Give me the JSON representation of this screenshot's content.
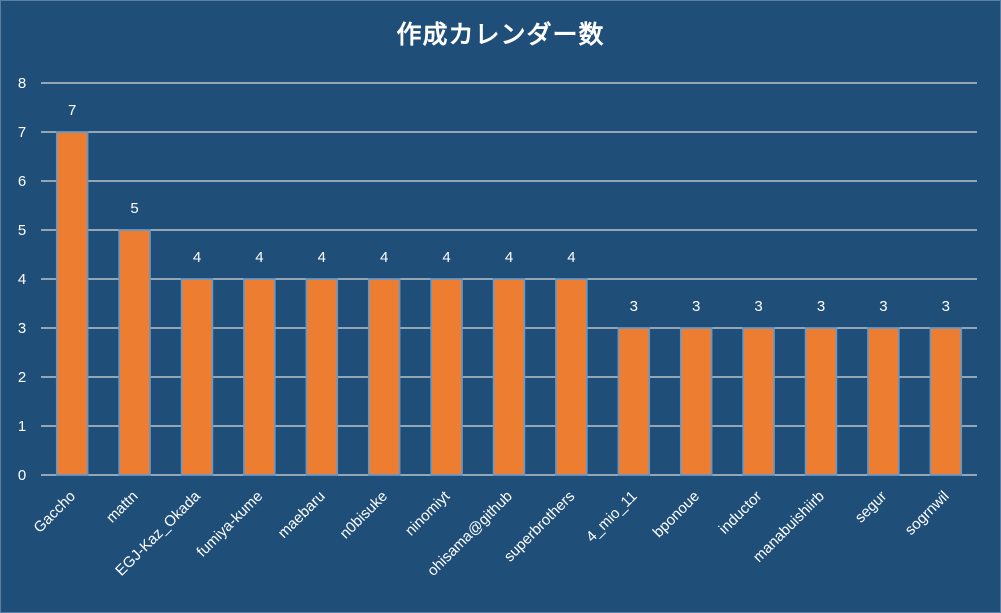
{
  "chart_data": {
    "type": "bar",
    "title": "作成カレンダー数",
    "xlabel": "",
    "ylabel": "",
    "ylim": [
      0,
      8
    ],
    "yticks": [
      0,
      1,
      2,
      3,
      4,
      5,
      6,
      7,
      8
    ],
    "grid": true,
    "legend": "none",
    "categories": [
      "Gaccho",
      "mattn",
      "EGJ-Kaz_Okada",
      "fumiya-kume",
      "maebaru",
      "n0bisuke",
      "ninomiyt",
      "ohisama@github",
      "superbrothers",
      "4_mio_11",
      "bponoue",
      "inductor",
      "manabuishiirb",
      "segur",
      "sogrnwil"
    ],
    "values": [
      7,
      5,
      4,
      4,
      4,
      4,
      4,
      4,
      4,
      3,
      3,
      3,
      3,
      3,
      3
    ],
    "colors": {
      "background": "#1f4e79",
      "bar_fill": "#ed7d31",
      "bar_outline": "#5b9bd5",
      "gridline": "#d9d9d9",
      "text": "#ffffff"
    }
  }
}
